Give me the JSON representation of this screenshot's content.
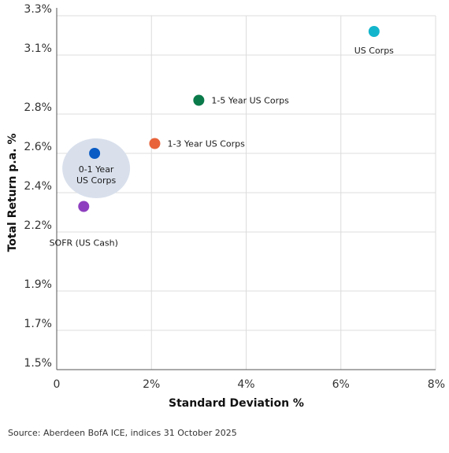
{
  "chart_data": {
    "type": "scatter",
    "xlabel": "Standard Deviation %",
    "ylabel": "Total Return p.a. %",
    "xlim": [
      0,
      8
    ],
    "ylim": [
      1.5,
      3.3
    ],
    "x_ticks": [
      0,
      2,
      4,
      6,
      8
    ],
    "x_tick_labels": [
      "0",
      "2%",
      "4%",
      "6%",
      "8%"
    ],
    "y_ticks": [
      1.5,
      1.7,
      1.9,
      2.2,
      2.4,
      2.6,
      2.8,
      3.1,
      3.3
    ],
    "y_tick_labels": [
      "1.5%",
      "1.7%",
      "1.9%",
      "2.2%",
      "2.4%",
      "2.6%",
      "2.8%",
      "3.1%",
      "3.3%"
    ],
    "grid": true,
    "points": [
      {
        "label": "US Corps",
        "x": 6.7,
        "y": 3.22,
        "color": "#13b5cc",
        "label_pos": "below"
      },
      {
        "label": "1-5 Year US Corps",
        "x": 3.0,
        "y": 2.87,
        "color": "#0b7a4b",
        "label_pos": "right"
      },
      {
        "label": "1-3 Year US Corps",
        "x": 2.07,
        "y": 2.65,
        "color": "#e8633a",
        "label_pos": "right"
      },
      {
        "label": "0-1 Year US Corps",
        "label_lines": [
          "0-1 Year",
          "US Corps"
        ],
        "x": 0.8,
        "y": 2.6,
        "color": "#0a5bc4",
        "label_pos": "below-highlight"
      },
      {
        "label": "SOFR (US Cash)",
        "x": 0.57,
        "y": 2.33,
        "color": "#8e3fbf",
        "label_pos": "below"
      }
    ]
  },
  "source": "Source: Aberdeen BofA ICE, indices 31 October 2025"
}
